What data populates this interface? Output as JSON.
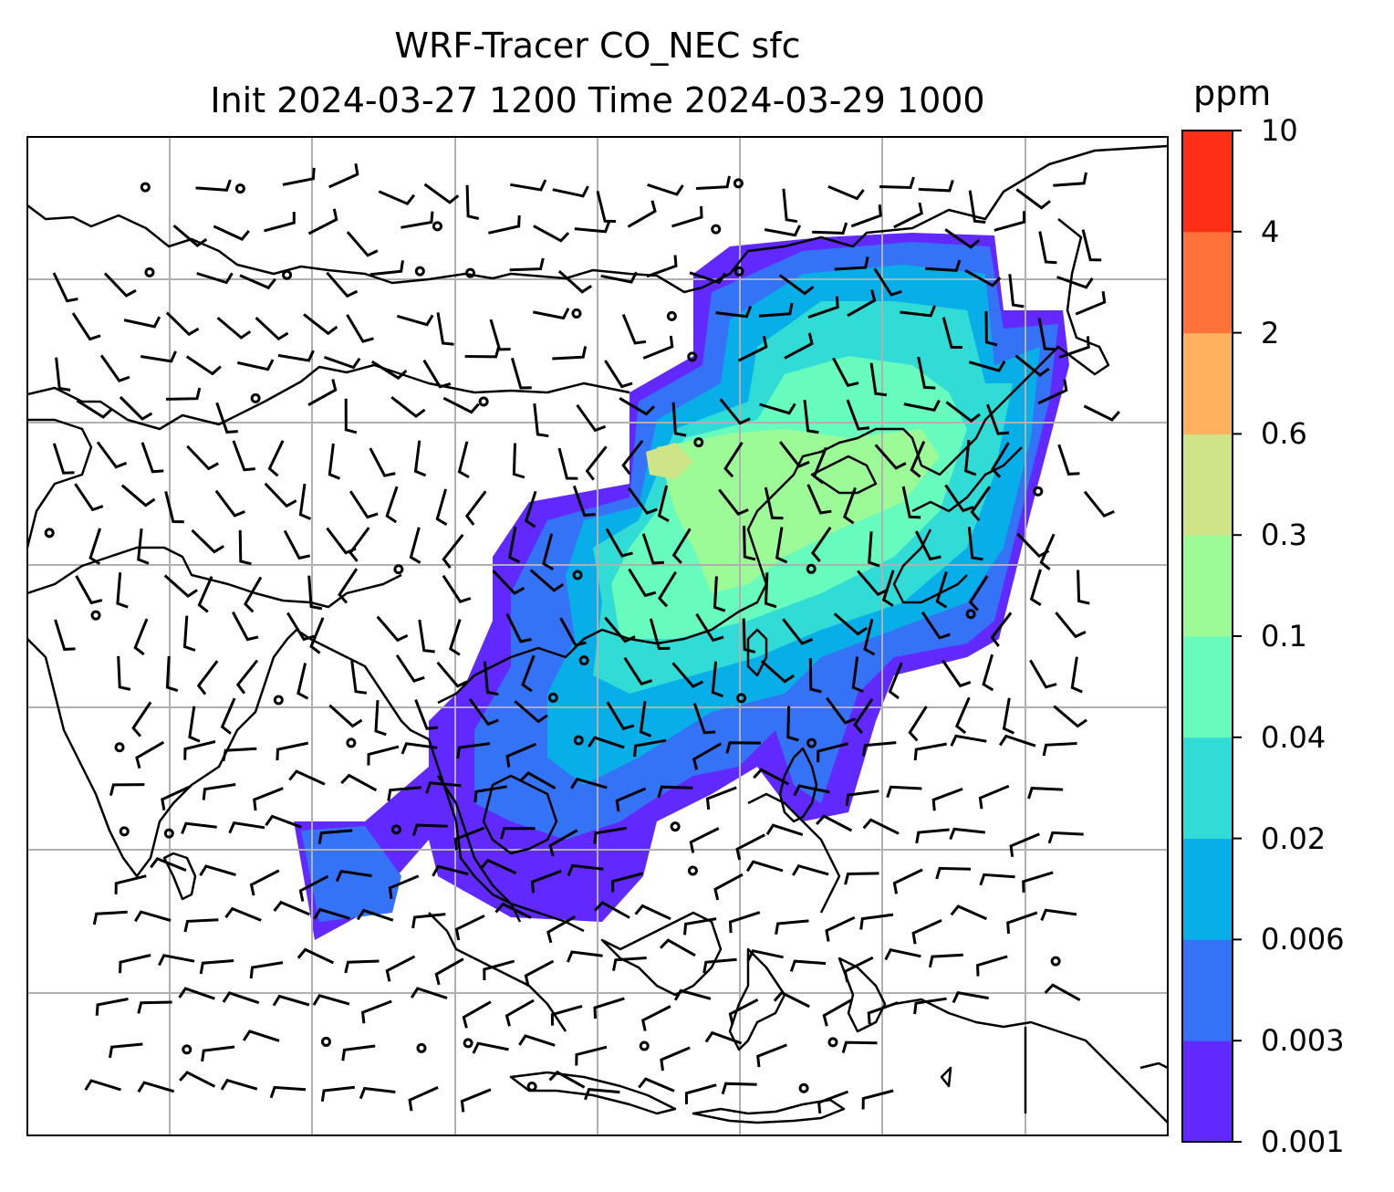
{
  "title": {
    "line1": "WRF-Tracer CO_NEC sfc",
    "line2": "Init 2024-03-27 1200 Time 2024-03-29 1000"
  },
  "colorbar": {
    "unit": "ppm",
    "levels": [
      "0.001",
      "0.003",
      "0.006",
      "0.02",
      "0.04",
      "0.1",
      "0.3",
      "0.6",
      "2",
      "4",
      "10"
    ],
    "colors": [
      "#6129fe",
      "#3473f5",
      "#08aee8",
      "#31dbd6",
      "#67fbbe",
      "#9cfa97",
      "#cfe387",
      "#ffb15e",
      "#ff733b",
      "#ff2e16"
    ]
  },
  "map": {
    "gridlines": true,
    "feature_colors": {
      "coastline": "#000000",
      "grid": "#b0b0b0",
      "barb": "#000000"
    }
  }
}
